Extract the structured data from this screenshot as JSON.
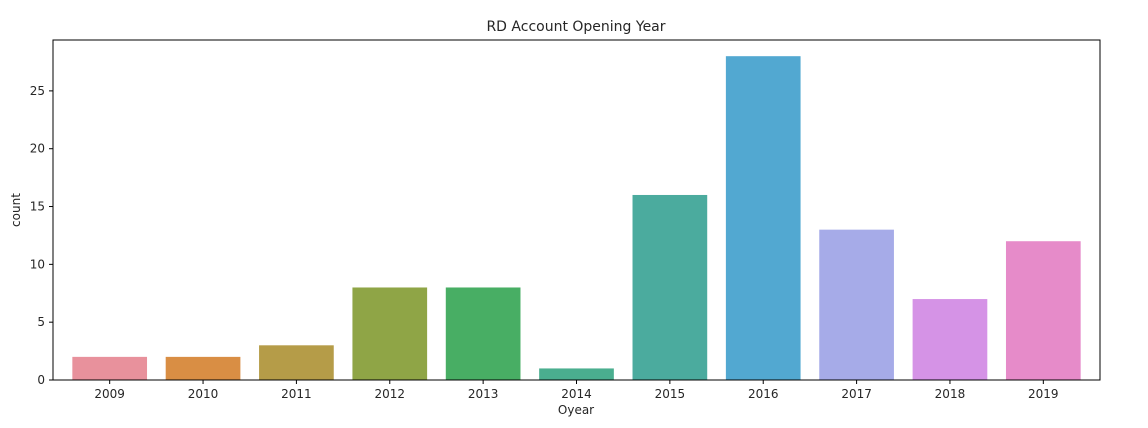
{
  "chart_data": {
    "type": "bar",
    "title": "RD Account Opening Year",
    "xlabel": "Oyear",
    "ylabel": "count",
    "categories": [
      "2009",
      "2010",
      "2011",
      "2012",
      "2013",
      "2014",
      "2015",
      "2016",
      "2017",
      "2018",
      "2019"
    ],
    "values": [
      2,
      2,
      3,
      8,
      8,
      1,
      16,
      28,
      13,
      7,
      12
    ],
    "colors": [
      "#e8919c",
      "#d98e44",
      "#b59c48",
      "#8fa546",
      "#48ae64",
      "#4aae8f",
      "#4bab9e",
      "#52a8d1",
      "#a6abe8",
      "#d593e6",
      "#e68bc9"
    ],
    "yticks": [
      0,
      5,
      10,
      15,
      20,
      25
    ],
    "ylim": [
      0,
      29.4
    ],
    "grid": false,
    "legend": "none"
  }
}
